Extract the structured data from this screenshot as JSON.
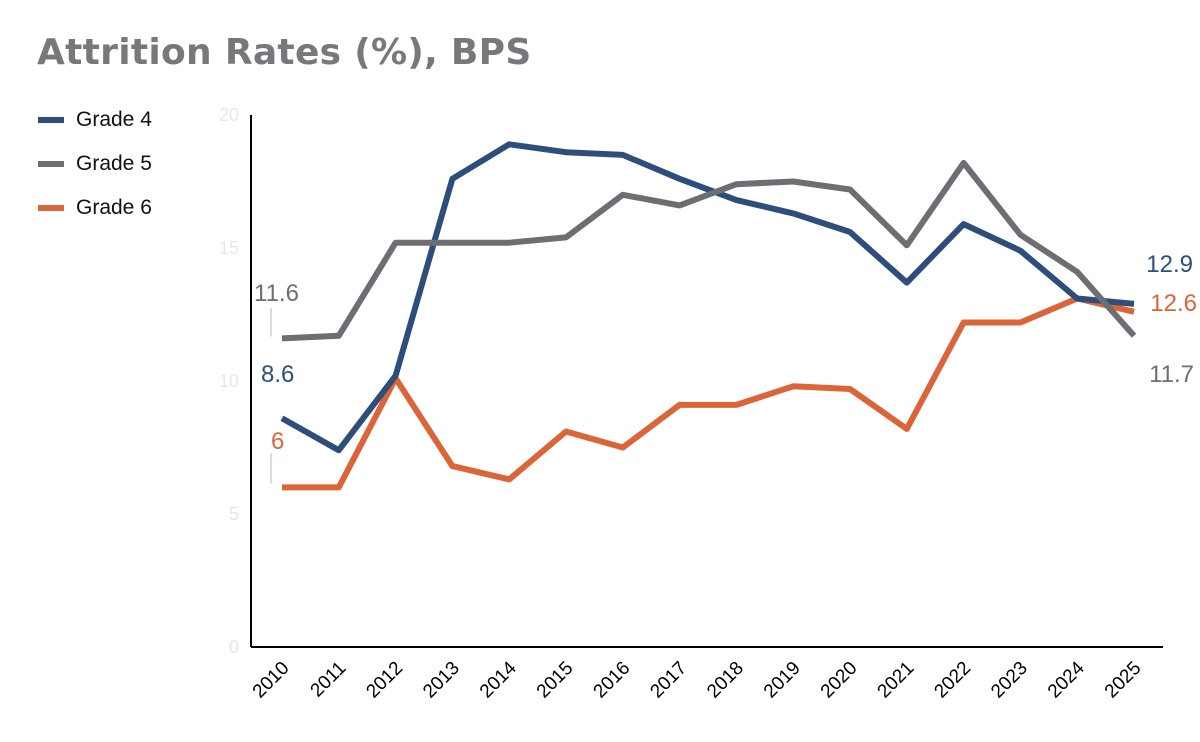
{
  "chart_data": {
    "type": "line",
    "title": "Attrition Rates (%), BPS",
    "xlabel": "",
    "ylabel": "",
    "ylim": [
      0,
      20
    ],
    "yticks": [
      "0",
      "5",
      "10",
      "15",
      "20"
    ],
    "grid": false,
    "legend_position": "top-left",
    "categories": [
      "2010",
      "2011",
      "2012",
      "2013",
      "2014",
      "2015",
      "2016",
      "2017",
      "2018",
      "2019",
      "2020",
      "2021",
      "2022",
      "2023",
      "2024",
      "2025"
    ],
    "series": [
      {
        "name": "Grade 4",
        "color": "#2d4e7b",
        "values": [
          8.6,
          7.4,
          10.2,
          17.6,
          18.9,
          18.6,
          18.5,
          17.6,
          16.8,
          16.3,
          15.6,
          13.7,
          15.9,
          14.9,
          13.1,
          12.9
        ],
        "first_label": "8.6",
        "last_label": "12.9"
      },
      {
        "name": "Grade 5",
        "color": "#6c6e73",
        "values": [
          11.6,
          11.7,
          15.2,
          15.2,
          15.2,
          15.4,
          17.0,
          16.6,
          17.4,
          17.5,
          17.2,
          15.1,
          18.2,
          15.5,
          14.1,
          11.7
        ],
        "first_label": "11.6",
        "last_label": "11.7"
      },
      {
        "name": "Grade 6",
        "color": "#db6439",
        "values": [
          6.0,
          6.0,
          10.1,
          6.8,
          6.3,
          8.1,
          7.5,
          9.1,
          9.1,
          9.8,
          9.7,
          8.2,
          12.2,
          12.2,
          13.1,
          12.6
        ],
        "first_label": "6",
        "last_label": "12.6"
      }
    ]
  }
}
